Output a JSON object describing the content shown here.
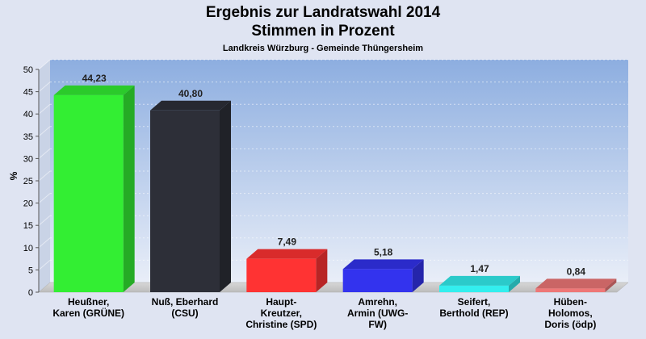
{
  "chart_data": {
    "type": "bar",
    "title_line1": "Ergebnis zur Landratswahl 2014",
    "title_line2": "Stimmen in Prozent",
    "subtitle": "Landkreis Würzburg - Gemeinde Thüngersheim",
    "ylabel": "%",
    "xlabel": "",
    "ylim": [
      0,
      50
    ],
    "yticks": [
      0,
      5,
      10,
      15,
      20,
      25,
      30,
      35,
      40,
      45,
      50
    ],
    "grid": true,
    "legend": "none",
    "categories": [
      [
        "Heußner,",
        "Karen (GRÜNE)"
      ],
      [
        "Nuß, Eberhard",
        "(CSU)"
      ],
      [
        "Haupt-",
        "Kreutzer,",
        "Christine (SPD)"
      ],
      [
        "Amrehn,",
        "Armin (UWG-",
        "FW)"
      ],
      [
        "Seifert,",
        "Berthold (REP)"
      ],
      [
        "Hüben-",
        "Holomos,",
        "Doris (ödp)"
      ]
    ],
    "values": [
      44.23,
      40.8,
      7.49,
      5.18,
      1.47,
      0.84
    ],
    "value_labels": [
      "44,23",
      "40,80",
      "7,49",
      "5,18",
      "1,47",
      "0,84"
    ],
    "colors": [
      "#33ee33",
      "#2d2f38",
      "#ff3333",
      "#3333ee",
      "#33eeee",
      "#ee7777"
    ]
  }
}
